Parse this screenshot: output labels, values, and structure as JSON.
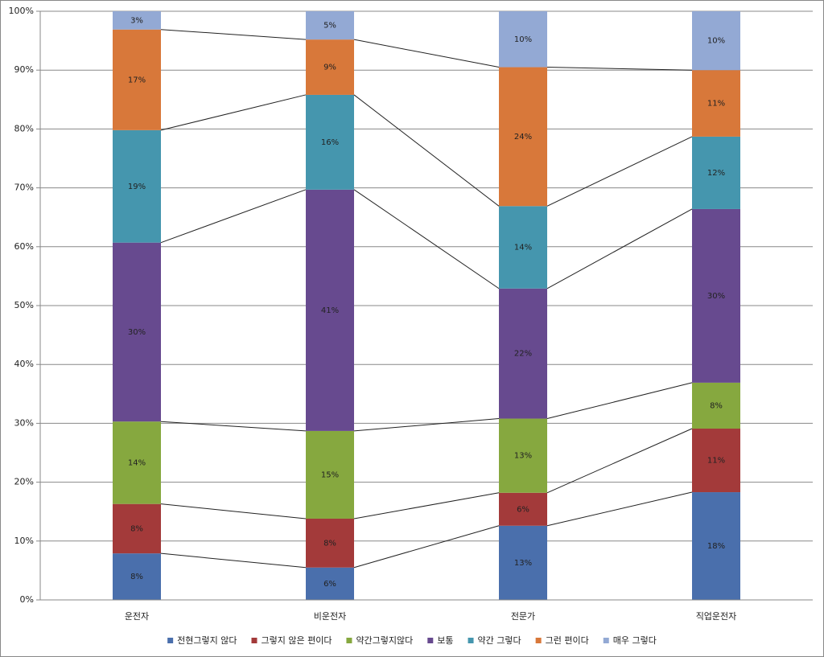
{
  "chart_data": {
    "type": "stacked_bar_100",
    "categories": [
      "운전자",
      "비운전자",
      "전문가",
      "직업운전자"
    ],
    "ylim": [
      0,
      100
    ],
    "yticks": [
      {
        "value": 0,
        "label": "0%"
      },
      {
        "value": 10,
        "label": "10%"
      },
      {
        "value": 20,
        "label": "20%"
      },
      {
        "value": 30,
        "label": "30%"
      },
      {
        "value": 40,
        "label": "40%"
      },
      {
        "value": 50,
        "label": "50%"
      },
      {
        "value": 60,
        "label": "60%"
      },
      {
        "value": 70,
        "label": "70%"
      },
      {
        "value": 80,
        "label": "80%"
      },
      {
        "value": 90,
        "label": "90%"
      },
      {
        "value": 100,
        "label": "100%"
      }
    ],
    "grid": true,
    "series_lines": true,
    "legend": "bottom",
    "series": [
      {
        "name": "전현그렇지 않다",
        "color": "#4a6fac",
        "values": [
          7.9,
          5.5,
          12.6,
          18.3
        ],
        "value_labels": [
          "8%",
          "6%",
          "13%",
          "18%"
        ]
      },
      {
        "name": "그렇지 않은 편이다",
        "color": "#a33a3a",
        "values": [
          8.4,
          8.3,
          5.6,
          10.8
        ],
        "value_labels": [
          "8%",
          "8%",
          "6%",
          "11%"
        ]
      },
      {
        "name": "약간그렇지않다",
        "color": "#86a83f",
        "values": [
          14.0,
          14.9,
          12.6,
          7.8
        ],
        "value_labels": [
          "14%",
          "15%",
          "13%",
          "8%"
        ]
      },
      {
        "name": "보통",
        "color": "#674a8f",
        "values": [
          30.4,
          41.0,
          22.1,
          29.5
        ],
        "value_labels": [
          "30%",
          "41%",
          "22%",
          "30%"
        ]
      },
      {
        "name": "약간 그렇다",
        "color": "#4596ae",
        "values": [
          19.1,
          16.1,
          14.0,
          12.3
        ],
        "value_labels": [
          "19%",
          "16%",
          "14%",
          "12%"
        ]
      },
      {
        "name": "그런 편이다",
        "color": "#d8783a",
        "values": [
          17.1,
          9.4,
          23.6,
          11.3
        ],
        "value_labels": [
          "17%",
          "9%",
          "24%",
          "11%"
        ]
      },
      {
        "name": "매우 그렇다",
        "color": "#93a9d4",
        "values": [
          3.1,
          4.8,
          9.5,
          10.0
        ],
        "value_labels": [
          "3%",
          "5%",
          "10%",
          "10%"
        ]
      }
    ]
  }
}
